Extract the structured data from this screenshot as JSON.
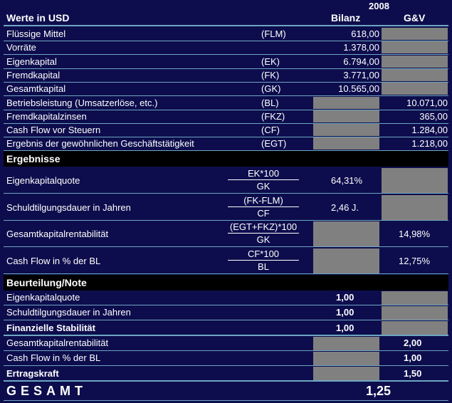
{
  "header": {
    "year": "2008",
    "title": "Werte in USD",
    "col_bilanz": "Bilanz",
    "col_guv": "G&V"
  },
  "basis_rows": [
    {
      "label": "Flüssige Mittel",
      "abbr": "(FLM)",
      "bilanz": "618,00",
      "guv": ""
    },
    {
      "label": "Vorräte",
      "abbr": "",
      "bilanz": "1.378,00",
      "guv": ""
    },
    {
      "label": "Eigenkapital",
      "abbr": "(EK)",
      "bilanz": "6.794,00",
      "guv": ""
    },
    {
      "label": "Fremdkapital",
      "abbr": "(FK)",
      "bilanz": "3.771,00",
      "guv": ""
    },
    {
      "label": "Gesamtkapital",
      "abbr": "(GK)",
      "bilanz": "10.565,00",
      "guv": ""
    },
    {
      "label": "Betriebsleistung (Umsatzerlöse, etc.)",
      "abbr": "(BL)",
      "bilanz": "",
      "guv": "10.071,00"
    },
    {
      "label": "Fremdkapitalzinsen",
      "abbr": "(FKZ)",
      "bilanz": "",
      "guv": "365,00"
    },
    {
      "label": "Cash Flow vor Steuern",
      "abbr": "(CF)",
      "bilanz": "",
      "guv": "1.284,00"
    },
    {
      "label": "Ergebnis der gewöhnlichen Geschäftstätigkeit",
      "abbr": "(EGT)",
      "bilanz": "",
      "guv": "1.218,00"
    }
  ],
  "ergebnisse": {
    "title": "Ergebnisse",
    "rows": [
      {
        "label": "Eigenkapitalquote",
        "num": "EK*100",
        "den": "GK",
        "bilanz": "64,31%",
        "guv": ""
      },
      {
        "label": "Schuldtilgungsdauer in Jahren",
        "num": "(FK-FLM)",
        "den": "CF",
        "bilanz": "2,46 J.",
        "guv": ""
      },
      {
        "label": "Gesamtkapitalrentabilität",
        "num": "(EGT+FKZ)*100",
        "den": "GK",
        "bilanz": "",
        "guv": "14,98%"
      },
      {
        "label": "Cash Flow in % der BL",
        "num": "CF*100",
        "den": "BL",
        "bilanz": "",
        "guv": "12,75%"
      }
    ]
  },
  "beurteilung": {
    "title": "Beurteilung/Note",
    "ek_quote_label": "Eigenkapitalquote",
    "ek_quote_value": "1,00",
    "schuld_label": "Schuldtilgungsdauer in Jahren",
    "schuld_value": "1,00",
    "stabilitaet_label": "Finanzielle Stabilität",
    "stabilitaet_value": "1,00",
    "rentab_label": "Gesamtkapitalrentabilität",
    "rentab_value": "2,00",
    "cf_label": "Cash Flow in % der BL",
    "cf_value": "1,00",
    "ertrag_label": "Ertragskraft",
    "ertrag_value": "1,50"
  },
  "gesamt": {
    "label": "GESAMT",
    "value": "1,25"
  },
  "colors": {
    "background": "#0d0d4d",
    "grey_cell": "#808080",
    "divider": "#6fa6c2"
  }
}
